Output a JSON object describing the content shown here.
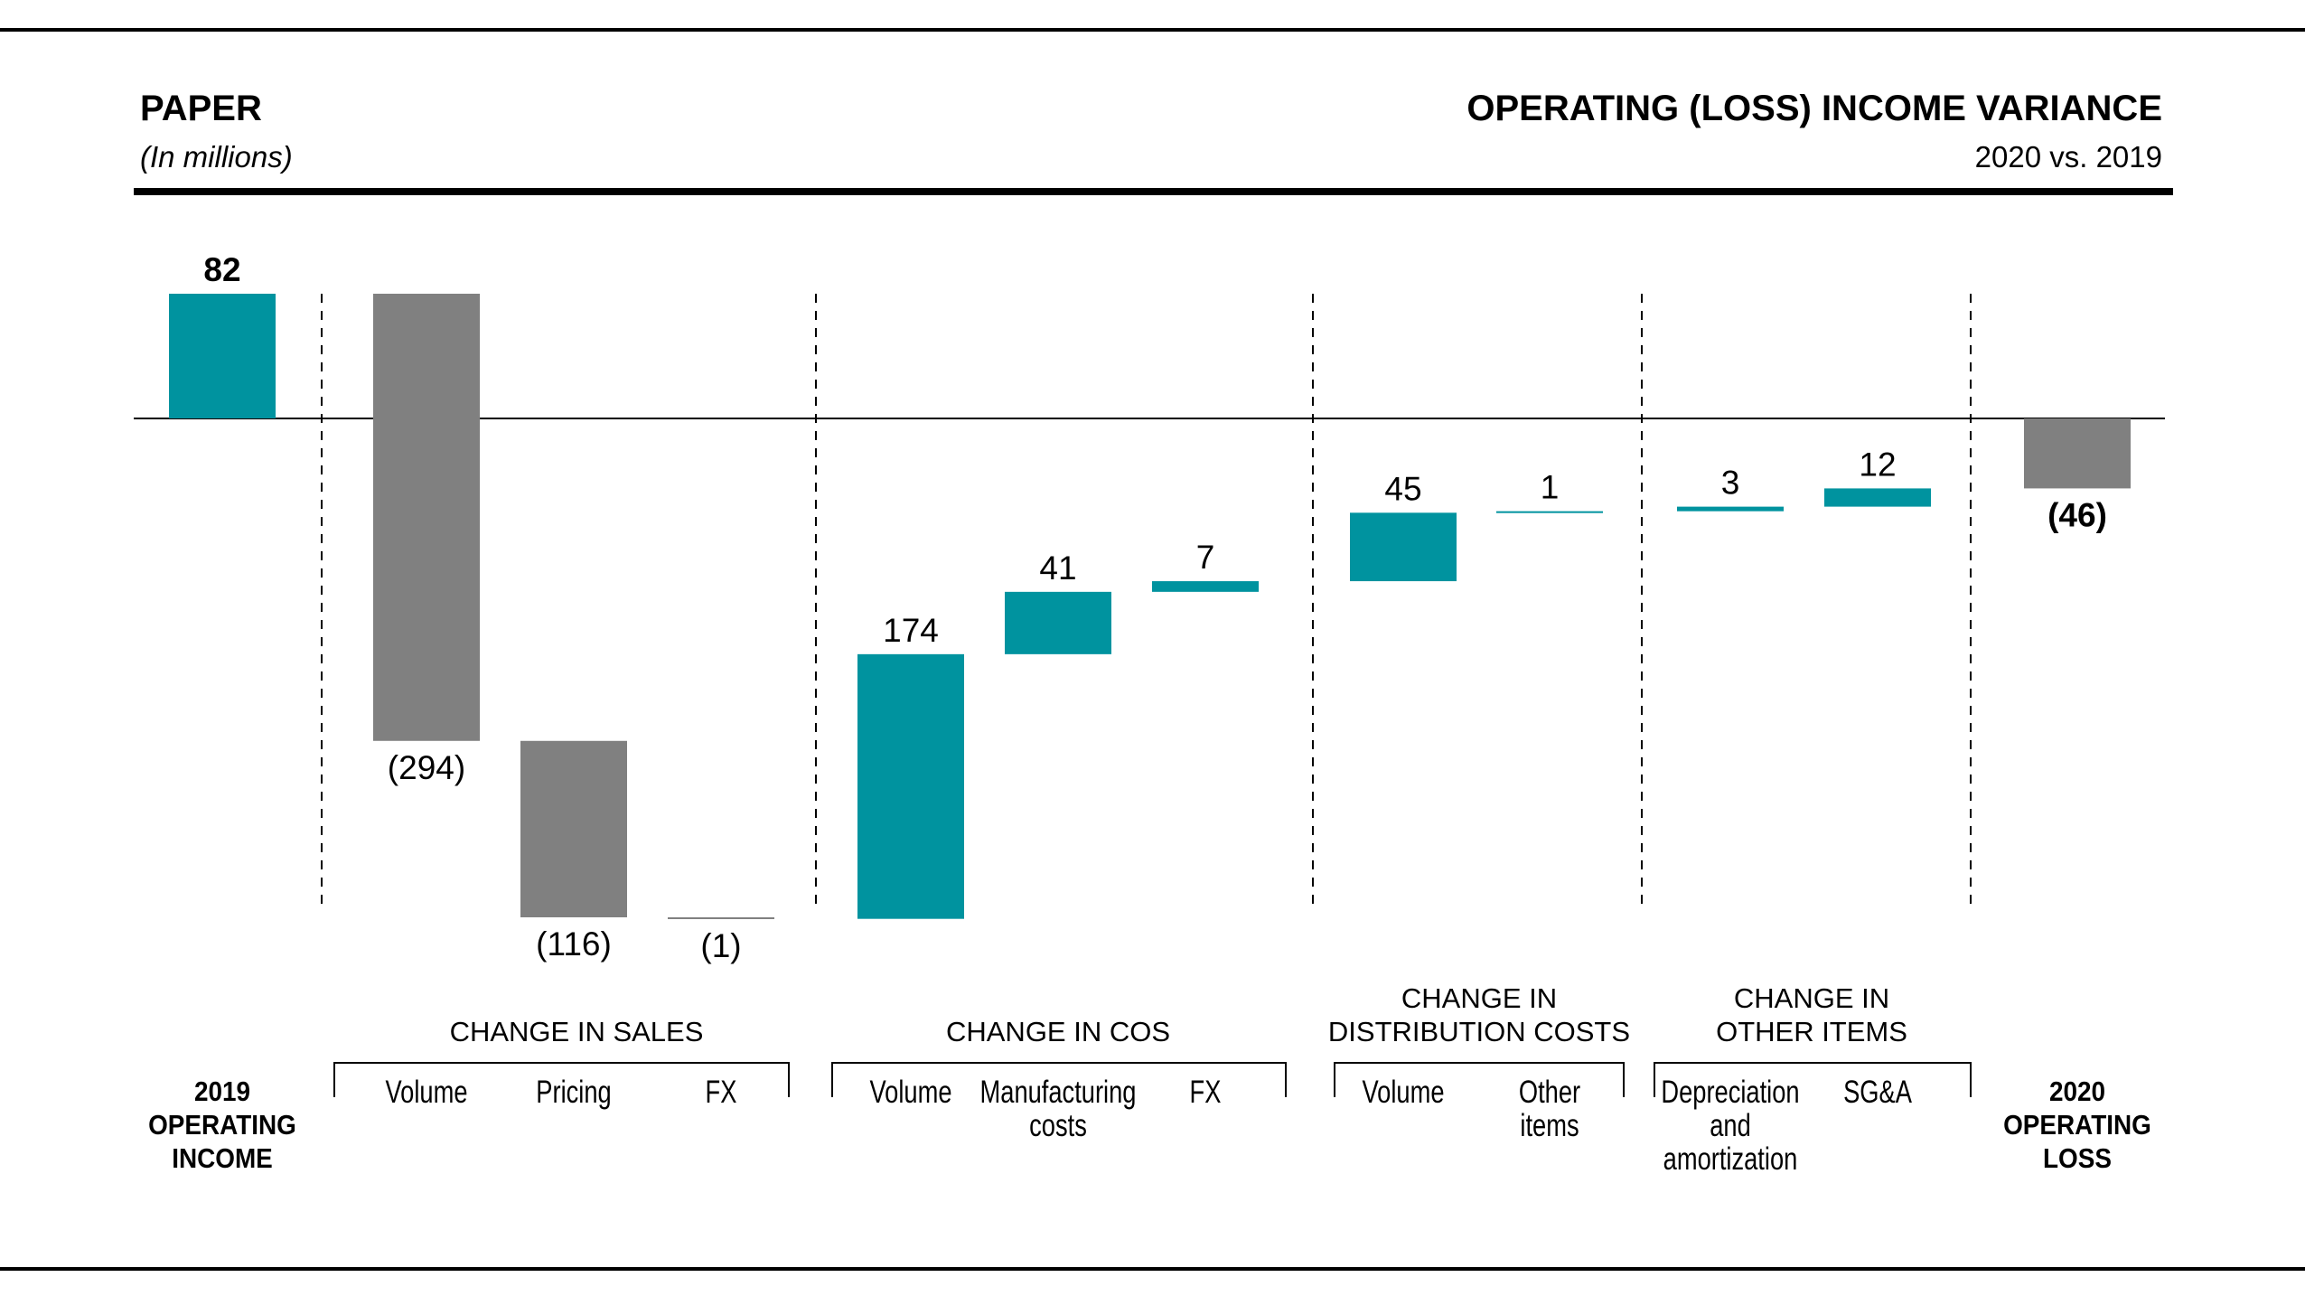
{
  "header": {
    "left_title": "PAPER",
    "left_subtitle": "(In millions)",
    "right_title": "OPERATING (LOSS) INCOME VARIANCE",
    "right_subtitle": "2020 vs. 2019"
  },
  "colors": {
    "positive": "#00939f",
    "negative": "#808080",
    "text": "#000000"
  },
  "chart_data": {
    "type": "waterfall",
    "unit": "millions",
    "start": {
      "label": [
        "2019",
        "OPERATING",
        "INCOME"
      ],
      "value": 82,
      "display": "82"
    },
    "end": {
      "label": [
        "2020",
        "OPERATING",
        "LOSS"
      ],
      "value": -46,
      "display": "(46)"
    },
    "groups": [
      {
        "title": [
          "CHANGE IN SALES"
        ],
        "items": [
          {
            "label": [
              "Volume"
            ],
            "value": -294,
            "display": "(294)"
          },
          {
            "label": [
              "Pricing"
            ],
            "value": -116,
            "display": "(116)"
          },
          {
            "label": [
              "FX"
            ],
            "value": -1,
            "display": "(1)"
          }
        ]
      },
      {
        "title": [
          "CHANGE IN COS"
        ],
        "items": [
          {
            "label": [
              "Volume"
            ],
            "value": 174,
            "display": "174"
          },
          {
            "label": [
              "Manufacturing",
              "costs"
            ],
            "value": 41,
            "display": "41"
          },
          {
            "label": [
              "FX"
            ],
            "value": 7,
            "display": "7"
          }
        ]
      },
      {
        "title": [
          "CHANGE IN",
          "DISTRIBUTION COSTS"
        ],
        "items": [
          {
            "label": [
              "Volume"
            ],
            "value": 45,
            "display": "45"
          },
          {
            "label": [
              "Other",
              "items"
            ],
            "value": 1,
            "display": "1"
          }
        ]
      },
      {
        "title": [
          "CHANGE IN",
          "OTHER ITEMS"
        ],
        "items": [
          {
            "label": [
              "Depreciation",
              "and",
              "amortization"
            ],
            "value": 3,
            "display": "3"
          },
          {
            "label": [
              "SG&A"
            ],
            "value": 12,
            "display": "12"
          }
        ]
      }
    ]
  }
}
